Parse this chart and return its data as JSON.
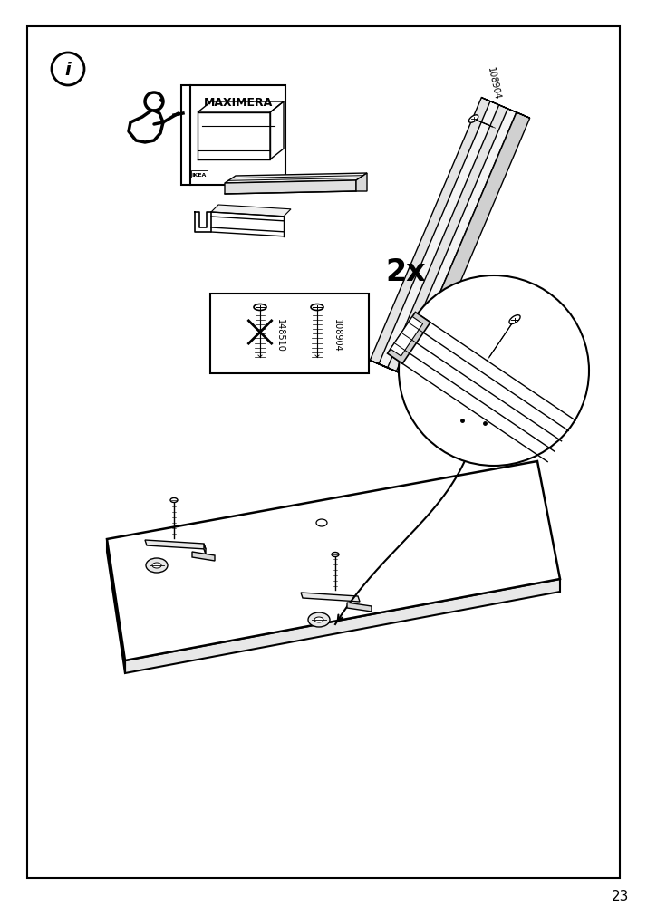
{
  "page_number": "23",
  "bg": "#ffffff",
  "lc": "#000000",
  "border": [
    30,
    30,
    654,
    940
  ],
  "info_circle": [
    75,
    77,
    18
  ],
  "maximera_label": "MAXIMERA",
  "screw_labels": [
    "148510",
    "108904"
  ],
  "quantity_label": "2x",
  "screw_id_top": "108904"
}
